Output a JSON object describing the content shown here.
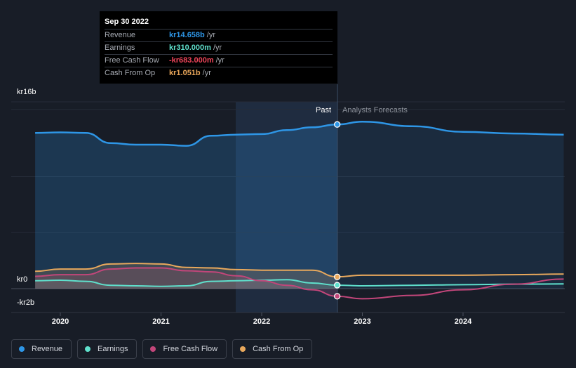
{
  "chart_data": {
    "type": "line",
    "x_ticks": [
      "2020",
      "2021",
      "2022",
      "2023",
      "2024"
    ],
    "y_ticks": [
      "kr16b",
      "kr0",
      "-kr2b"
    ],
    "ylim": [
      -2,
      16
    ],
    "divider_label_past": "Past",
    "divider_label_forecast": "Analysts Forecasts",
    "tooltip": {
      "date": "Sep 30 2022",
      "rows": [
        {
          "label": "Revenue",
          "value": "kr14.658b",
          "unit": "/yr",
          "color": "#2e96e6"
        },
        {
          "label": "Earnings",
          "value": "kr310.000m",
          "unit": "/yr",
          "color": "#5fe0cc"
        },
        {
          "label": "Free Cash Flow",
          "value": "-kr683.000m",
          "unit": "/yr",
          "color": "#f0455a"
        },
        {
          "label": "Cash From Op",
          "value": "kr1.051b",
          "unit": "/yr",
          "color": "#eaa75a"
        }
      ]
    },
    "series": [
      {
        "name": "Revenue",
        "color": "#2e96e6",
        "x": [
          2019.75,
          2020.0,
          2020.25,
          2020.5,
          2020.75,
          2021.0,
          2021.25,
          2021.5,
          2021.75,
          2022.0,
          2022.25,
          2022.5,
          2022.75,
          2023.0,
          2023.5,
          2024.0,
          2024.5,
          2025.0
        ],
        "values": [
          13.9,
          13.95,
          13.9,
          13.0,
          12.85,
          12.85,
          12.75,
          13.65,
          13.75,
          13.8,
          14.15,
          14.4,
          14.658,
          14.9,
          14.5,
          14.0,
          13.85,
          13.75
        ]
      },
      {
        "name": "Earnings",
        "color": "#5fe0cc",
        "x": [
          2019.75,
          2020.0,
          2020.25,
          2020.5,
          2020.75,
          2021.0,
          2021.25,
          2021.5,
          2021.75,
          2022.0,
          2022.25,
          2022.5,
          2022.75,
          2023.0,
          2023.5,
          2024.0,
          2024.5,
          2025.0
        ],
        "values": [
          0.7,
          0.75,
          0.65,
          0.3,
          0.25,
          0.2,
          0.25,
          0.65,
          0.7,
          0.75,
          0.8,
          0.5,
          0.31,
          0.25,
          0.3,
          0.35,
          0.4,
          0.42
        ]
      },
      {
        "name": "Free Cash Flow",
        "color": "#c2467a",
        "x": [
          2019.75,
          2020.0,
          2020.25,
          2020.5,
          2020.75,
          2021.0,
          2021.25,
          2021.5,
          2021.75,
          2022.0,
          2022.25,
          2022.5,
          2022.75,
          2023.0,
          2023.5,
          2024.0,
          2024.5,
          2025.0
        ],
        "values": [
          1.1,
          1.25,
          1.25,
          1.75,
          1.85,
          1.85,
          1.6,
          1.5,
          1.15,
          0.7,
          0.3,
          -0.1,
          -0.683,
          -0.9,
          -0.6,
          -0.1,
          0.4,
          0.85
        ]
      },
      {
        "name": "Cash From Op",
        "color": "#e8a85c",
        "x": [
          2019.75,
          2020.0,
          2020.25,
          2020.5,
          2020.75,
          2021.0,
          2021.25,
          2021.5,
          2021.75,
          2022.0,
          2022.25,
          2022.5,
          2022.75,
          2023.0,
          2023.5,
          2024.0,
          2024.5,
          2025.0
        ],
        "values": [
          1.55,
          1.75,
          1.75,
          2.2,
          2.25,
          2.2,
          1.9,
          1.85,
          1.7,
          1.65,
          1.65,
          1.65,
          1.051,
          1.2,
          1.2,
          1.2,
          1.25,
          1.3
        ]
      }
    ]
  }
}
